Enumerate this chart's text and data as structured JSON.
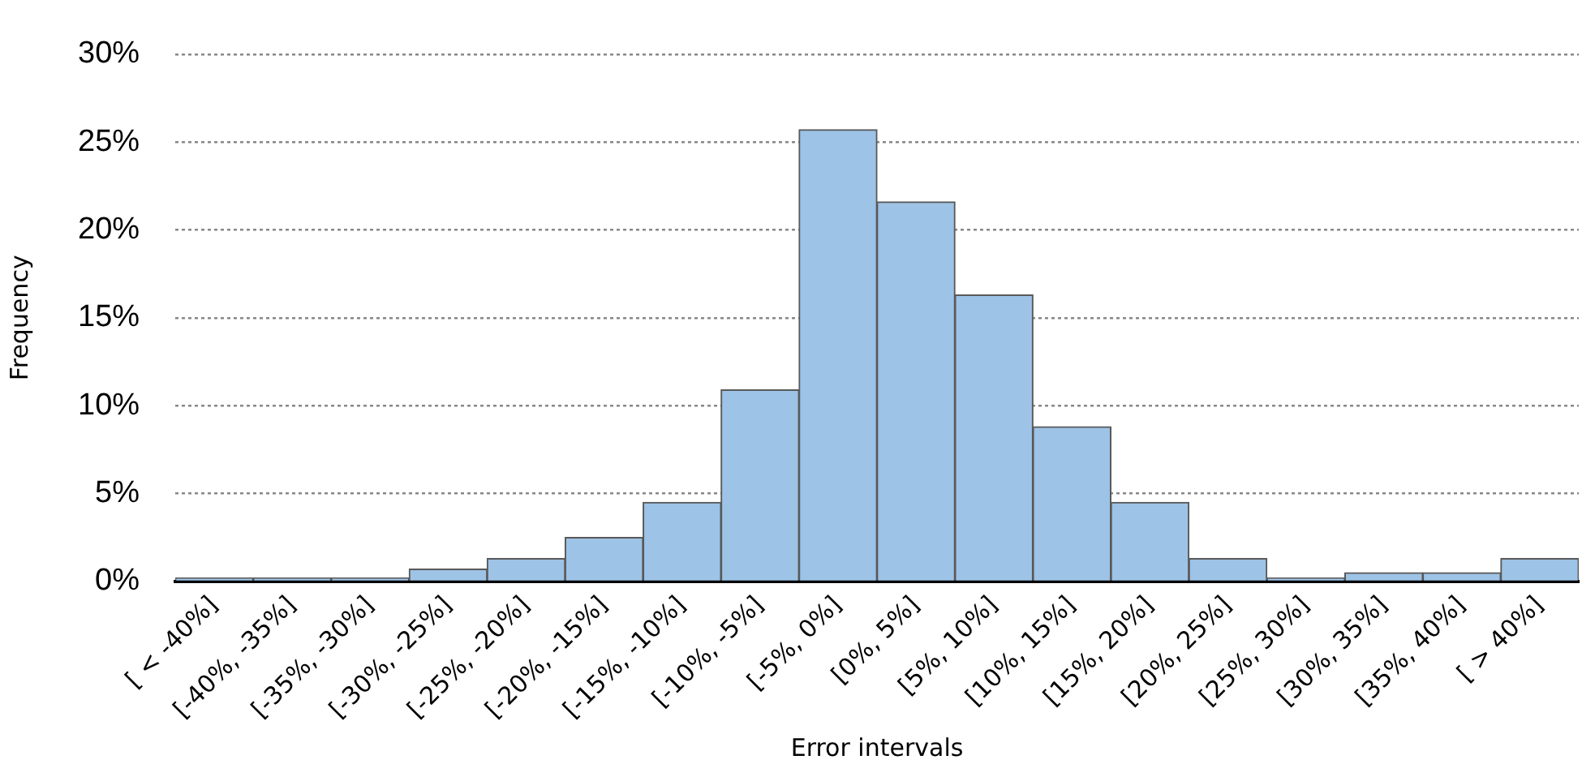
{
  "chart_data": {
    "type": "bar",
    "xlabel": "Error intervals",
    "ylabel": "Frequency",
    "categories": [
      "[ < -40%]",
      "[-40%, -35%]",
      "[-35%, -30%]",
      "[-30%, -25%]",
      "[-25%, -20%]",
      "[-20%, -15%]",
      "[-15%, -10%]",
      "[-10%, -5%]",
      "[-5%, 0%]",
      "[0%, 5%]",
      "[5%, 10%]",
      "[10%, 15%]",
      "[15%, 20%]",
      "[20%, 25%]",
      "[25%, 30%]",
      "[30%, 35%]",
      "[35%, 40%]",
      "[ > 40%]"
    ],
    "values": [
      0.2,
      0.2,
      0.2,
      0.7,
      1.3,
      2.5,
      4.5,
      10.9,
      25.7,
      21.6,
      16.3,
      8.8,
      4.5,
      1.3,
      0.2,
      0.5,
      0.5,
      1.3
    ],
    "color": "#9dc3e6",
    "ylim": [
      0,
      30
    ],
    "yticks": [
      {
        "value": 0,
        "label": "0%"
      },
      {
        "value": 5,
        "label": "5%"
      },
      {
        "value": 10,
        "label": "10%"
      },
      {
        "value": 15,
        "label": "15%"
      },
      {
        "value": 20,
        "label": "20%"
      },
      {
        "value": 25,
        "label": "25%"
      },
      {
        "value": 30,
        "label": "30%"
      }
    ],
    "grid": "y",
    "legend": false
  }
}
